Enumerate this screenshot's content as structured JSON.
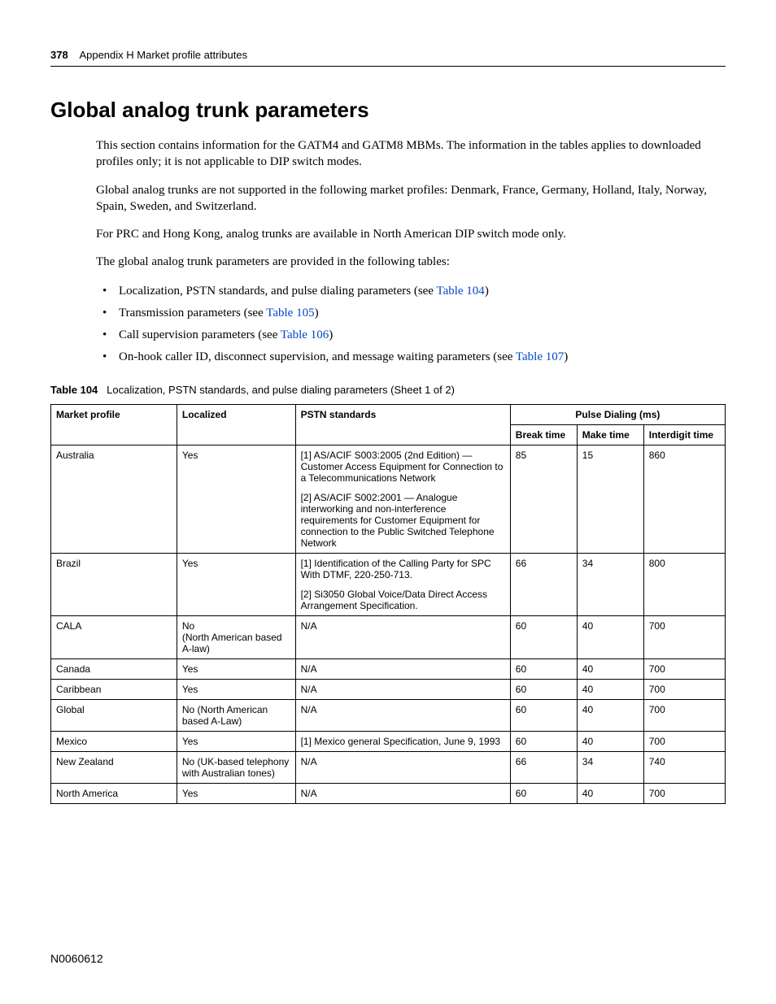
{
  "header": {
    "page_number": "378",
    "appendix_label": "Appendix H  Market profile attributes"
  },
  "section": {
    "title": "Global analog trunk parameters",
    "paragraphs": [
      "This section contains information for the GATM4 and GATM8 MBMs. The information in the tables applies to downloaded profiles only; it is not applicable to DIP switch modes.",
      "Global analog trunks are not supported in the following market profiles: Denmark, France, Germany, Holland, Italy, Norway, Spain, Sweden, and Switzerland.",
      "For PRC and Hong Kong, analog trunks are available in North American DIP switch mode only.",
      "The global analog trunk parameters are provided in the following tables:"
    ],
    "bullets": [
      {
        "pre": "Localization, PSTN standards, and pulse dialing parameters (see ",
        "link": "Table 104",
        "post": ")"
      },
      {
        "pre": "Transmission parameters (see ",
        "link": "Table 105",
        "post": ")"
      },
      {
        "pre": "Call supervision parameters (see ",
        "link": "Table 106",
        "post": ")"
      },
      {
        "pre": "On-hook caller ID, disconnect supervision, and message waiting parameters (see ",
        "link": "Table 107",
        "post": ")"
      }
    ]
  },
  "table": {
    "caption_label": "Table 104",
    "caption_text": "Localization, PSTN standards, and pulse dialing parameters (Sheet 1 of 2)",
    "group_header": "Pulse Dialing (ms)",
    "columns": [
      "Market profile",
      "Localized",
      "PSTN standards",
      "Break time",
      "Make time",
      "Interdigit time"
    ],
    "col_widths": [
      "17%",
      "16%",
      "29%",
      "9%",
      "9%",
      "11%"
    ],
    "rows": [
      {
        "profile": "Australia",
        "localized": "Yes",
        "pstn": [
          "[1] AS/ACIF S003:2005 (2nd Edition) — Customer Access Equipment for Connection to a Telecommunications Network",
          "[2] AS/ACIF S002:2001 — Analogue interworking and non-interference requirements for Customer Equipment for connection to the Public Switched Telephone Network"
        ],
        "break": "85",
        "make": "15",
        "inter": "860"
      },
      {
        "profile": "Brazil",
        "localized": "Yes",
        "pstn": [
          "[1] Identification of the Calling Party for SPC With DTMF, 220-250-713.",
          "[2] Si3050 Global Voice/Data Direct Access Arrangement Specification."
        ],
        "break": "66",
        "make": "34",
        "inter": "800"
      },
      {
        "profile": "CALA",
        "localized": "No\n(North American based A-law)",
        "pstn": [
          "N/A"
        ],
        "break": "60",
        "make": "40",
        "inter": "700"
      },
      {
        "profile": "Canada",
        "localized": "Yes",
        "pstn": [
          "N/A"
        ],
        "break": "60",
        "make": "40",
        "inter": "700"
      },
      {
        "profile": "Caribbean",
        "localized": "Yes",
        "pstn": [
          "N/A"
        ],
        "break": "60",
        "make": "40",
        "inter": "700"
      },
      {
        "profile": "Global",
        "localized": "No (North American based A-Law)",
        "pstn": [
          "N/A"
        ],
        "break": "60",
        "make": "40",
        "inter": "700"
      },
      {
        "profile": "Mexico",
        "localized": "Yes",
        "pstn": [
          "[1] Mexico general Specification, June 9, 1993"
        ],
        "break": "60",
        "make": "40",
        "inter": "700"
      },
      {
        "profile": "New Zealand",
        "localized": "No (UK-based telephony with Australian tones)",
        "pstn": [
          "N/A"
        ],
        "break": "66",
        "make": "34",
        "inter": "740"
      },
      {
        "profile": "North America",
        "localized": "Yes",
        "pstn": [
          "N/A"
        ],
        "break": "60",
        "make": "40",
        "inter": "700"
      }
    ]
  },
  "footer": {
    "doc_id": "N0060612"
  },
  "style": {
    "link_color": "#0645c8",
    "text_color": "#000000",
    "background": "#ffffff",
    "body_font": "Georgia, 'Times New Roman', serif",
    "ui_font": "Arial, Helvetica, sans-serif"
  }
}
